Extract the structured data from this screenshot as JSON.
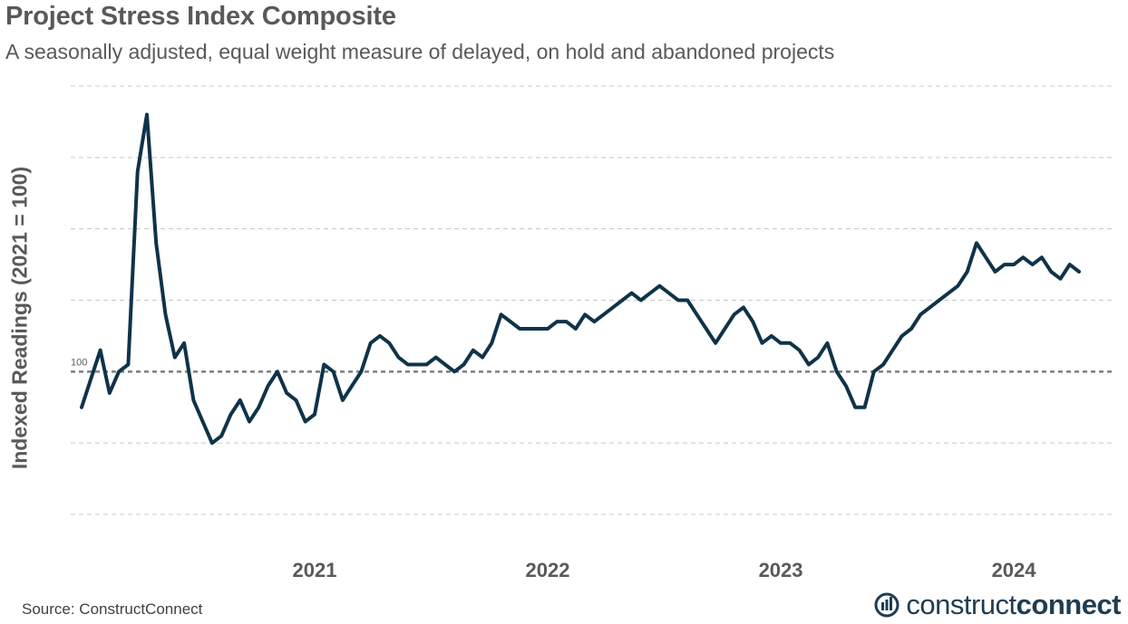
{
  "chart_data": {
    "type": "line",
    "title": "Project Stress Index Composite",
    "subtitle": "A seasonally adjusted, equal weight measure of delayed, on hold and abandoned projects",
    "ylabel": "Indexed Readings (2021 = 100)",
    "xlabel": "",
    "x_tick_labels": [
      "2021",
      "2022",
      "2023",
      "2024"
    ],
    "reference_line": {
      "value": 100,
      "label": "100"
    },
    "ylim": [
      80,
      140
    ],
    "yticks_gridlines": [
      80,
      90,
      100,
      110,
      120,
      130,
      140
    ],
    "grid": true,
    "line_color": "#0f3349",
    "series": [
      {
        "name": "",
        "x": [
          2020.0,
          2020.04,
          2020.08,
          2020.12,
          2020.16,
          2020.2,
          2020.24,
          2020.28,
          2020.32,
          2020.36,
          2020.4,
          2020.44,
          2020.48,
          2020.52,
          2020.56,
          2020.6,
          2020.64,
          2020.68,
          2020.72,
          2020.76,
          2020.8,
          2020.84,
          2020.88,
          2020.92,
          2020.96,
          2021.0,
          2021.04,
          2021.08,
          2021.12,
          2021.16,
          2021.2,
          2021.24,
          2021.28,
          2021.32,
          2021.36,
          2021.4,
          2021.44,
          2021.48,
          2021.52,
          2021.56,
          2021.6,
          2021.64,
          2021.68,
          2021.72,
          2021.76,
          2021.8,
          2021.84,
          2021.88,
          2021.92,
          2021.96,
          2022.0,
          2022.04,
          2022.08,
          2022.12,
          2022.16,
          2022.2,
          2022.24,
          2022.28,
          2022.32,
          2022.36,
          2022.4,
          2022.44,
          2022.48,
          2022.52,
          2022.56,
          2022.6,
          2022.64,
          2022.68,
          2022.72,
          2022.76,
          2022.8,
          2022.84,
          2022.88,
          2022.92,
          2022.96,
          2023.0,
          2023.04,
          2023.08,
          2023.12,
          2023.16,
          2023.2,
          2023.24,
          2023.28,
          2023.32,
          2023.36,
          2023.4,
          2023.44,
          2023.48,
          2023.52,
          2023.56,
          2023.6,
          2023.64,
          2023.68,
          2023.72,
          2023.76,
          2023.8,
          2023.84,
          2023.88,
          2023.92,
          2023.96,
          2024.0,
          2024.04,
          2024.08,
          2024.12,
          2024.16,
          2024.2,
          2024.24,
          2024.28
        ],
        "values": [
          95,
          99,
          103,
          97,
          100,
          101,
          128,
          136,
          118,
          108,
          102,
          104,
          96,
          93,
          90,
          91,
          94,
          96,
          93,
          95,
          98,
          100,
          97,
          96,
          93,
          94,
          101,
          100,
          96,
          98,
          100,
          104,
          105,
          104,
          102,
          101,
          101,
          101,
          102,
          101,
          100,
          101,
          103,
          102,
          104,
          108,
          107,
          106,
          106,
          106,
          106,
          107,
          107,
          106,
          108,
          107,
          108,
          109,
          110,
          111,
          110,
          111,
          112,
          111,
          110,
          110,
          108,
          106,
          104,
          106,
          108,
          109,
          107,
          104,
          105,
          104,
          104,
          103,
          101,
          102,
          104,
          100,
          98,
          95,
          95,
          100,
          101,
          103,
          105,
          106,
          108,
          109,
          110,
          111,
          112,
          114,
          118,
          116,
          114,
          115,
          115,
          116,
          115,
          116,
          114,
          113,
          115,
          114
        ]
      }
    ]
  },
  "source": "Source: ConstructConnect",
  "logo": {
    "name": "constructconnect-logo-icon",
    "text_regular": "construct",
    "text_bold": "connect",
    "color": "#1f3c52"
  }
}
